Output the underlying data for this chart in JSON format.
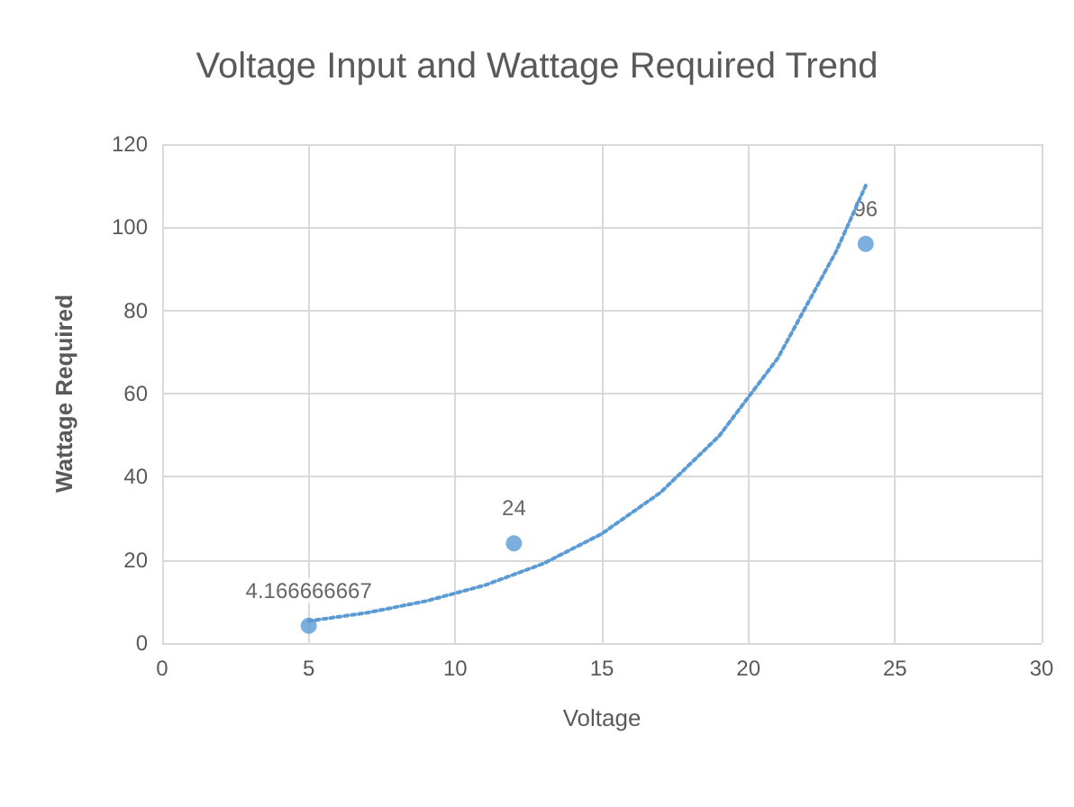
{
  "chart_data": {
    "type": "scatter",
    "title": "Voltage Input and Wattage Required Trend",
    "xlabel": "Voltage",
    "ylabel": "Wattage Required",
    "xlim": [
      0,
      30
    ],
    "xticks": [
      0,
      5,
      10,
      15,
      20,
      25,
      30
    ],
    "ylim": [
      0,
      120
    ],
    "yticks": [
      0,
      20,
      40,
      60,
      80,
      100,
      120
    ],
    "grid": true,
    "marker": "circle",
    "series": [
      {
        "color": "#5b9bd5",
        "x": [
          5,
          12,
          24
        ],
        "values": [
          4.166666667,
          24,
          96
        ],
        "value_labels": [
          "4.166666667",
          "24",
          "96"
        ]
      },
      {
        "type": "line",
        "line_style": "dotted",
        "marker": "none",
        "color": "#5b9bd5",
        "x": [
          5,
          7,
          9,
          11,
          13,
          15,
          17,
          19,
          21,
          23,
          24
        ],
        "values": [
          5.3,
          7.3,
          10.1,
          13.9,
          19.1,
          26.3,
          36.2,
          49.8,
          68.5,
          94.3,
          110
        ]
      }
    ]
  }
}
